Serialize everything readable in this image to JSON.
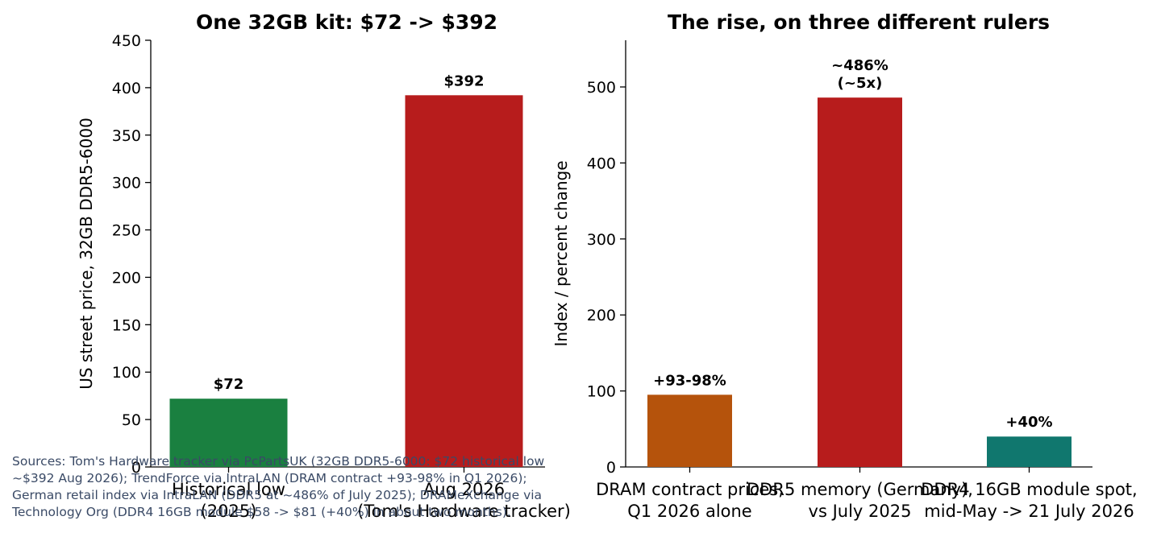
{
  "colors": {
    "green": "#1a8040",
    "red": "#b71c1c",
    "orange": "#b5530c",
    "teal": "#10776e",
    "sources_text": "#3a4a66"
  },
  "chart_data": [
    {
      "type": "bar",
      "title": "One 32GB kit: $72 -> $392",
      "ylabel": "US street price, 32GB DDR5-6000",
      "xlabel": "",
      "ylim": [
        0,
        450
      ],
      "yticks": [
        0,
        50,
        100,
        150,
        200,
        250,
        300,
        350,
        400,
        450
      ],
      "categories": [
        "Historical low\n(2025)",
        "Aug 2026\n(Tom's Hardware tracker)"
      ],
      "values": [
        72,
        392
      ],
      "data_labels": [
        "$72",
        "$392"
      ],
      "bar_colors": [
        "#1a8040",
        "#b71c1c"
      ],
      "grid": false
    },
    {
      "type": "bar",
      "title": "The rise, on three different rulers",
      "ylabel": "Index / percent change",
      "xlabel": "",
      "ylim": [
        0,
        560
      ],
      "yticks": [
        0,
        100,
        200,
        300,
        400,
        500
      ],
      "categories": [
        "DRAM contract prices,\nQ1 2026 alone",
        "DDR5 memory (Germany),\nvs July 2025",
        "DDR4 16GB module spot,\nmid-May -> 21 July 2026"
      ],
      "values": [
        95,
        486,
        40
      ],
      "data_labels": [
        "+93-98%",
        "~486%\n(~5x)",
        "+40%"
      ],
      "bar_colors": [
        "#b5530c",
        "#b71c1c",
        "#10776e"
      ],
      "grid": false
    }
  ],
  "sources": [
    "Sources: Tom's Hardware tracker via PcPartsUK (32GB DDR5-6000: $72 historical low",
    "~$392 Aug 2026); TrendForce via IntraLAN (DRAM contract +93-98% in Q1 2026);",
    "German retail index via IntraLAN (DDR5 at ~486% of July 2025); DRAMeXchange via",
    "Technology Org (DDR4 16GB module $58 -> $81 (+40%) in about two months)."
  ]
}
